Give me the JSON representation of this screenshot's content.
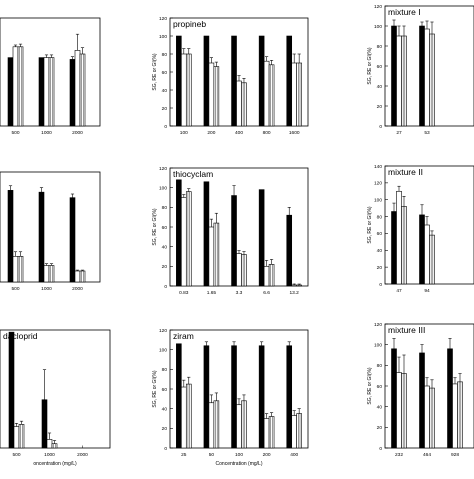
{
  "chart_data": [
    {
      "panel_id": "p1",
      "type": "bar",
      "title": "",
      "xlabel": "",
      "ylabel": "",
      "categories": [
        "500",
        "1000",
        "2000"
      ],
      "ylim": [
        0,
        120
      ],
      "show_y_ticks": false,
      "series_values": [
        [
          76,
          88,
          88
        ],
        [
          76,
          76,
          76
        ],
        [
          74,
          84,
          80
        ]
      ],
      "errors": [
        [
          0,
          2,
          3
        ],
        [
          0,
          3,
          3
        ],
        [
          3,
          18,
          7
        ]
      ]
    },
    {
      "panel_id": "p2",
      "type": "bar",
      "title": "propineb",
      "xlabel": "",
      "ylabel": "SG, RE or GI(%)",
      "categories": [
        "100",
        "200",
        "400",
        "800",
        "1600"
      ],
      "ylim": [
        0,
        120
      ],
      "yticks": [
        0,
        20,
        40,
        60,
        80,
        100,
        120
      ],
      "series_values": [
        [
          100,
          80,
          80
        ],
        [
          100,
          70,
          66
        ],
        [
          100,
          50,
          48
        ],
        [
          100,
          72,
          68
        ],
        [
          100,
          70,
          70
        ]
      ],
      "errors": [
        [
          0,
          6,
          6
        ],
        [
          0,
          6,
          5
        ],
        [
          0,
          6,
          5
        ],
        [
          0,
          5,
          5
        ],
        [
          0,
          10,
          10
        ]
      ]
    },
    {
      "panel_id": "p3",
      "type": "bar",
      "title": "mixture I",
      "xlabel": "",
      "ylabel": "SG, RE or GI(%)",
      "categories": [
        "27",
        "53"
      ],
      "ylim": [
        0,
        120
      ],
      "yticks": [
        0,
        20,
        40,
        60,
        80,
        100,
        120
      ],
      "series_values": [
        [
          100,
          90,
          90
        ],
        [
          100,
          97,
          92
        ]
      ],
      "errors": [
        [
          6,
          10,
          10
        ],
        [
          4,
          8,
          12
        ]
      ]
    },
    {
      "panel_id": "p4",
      "type": "bar",
      "title": "",
      "xlabel": "",
      "ylabel": "",
      "categories": [
        "500",
        "1000",
        "2000"
      ],
      "ylim": [
        0,
        120
      ],
      "show_y_ticks": false,
      "series_values": [
        [
          100,
          28,
          28
        ],
        [
          98,
          18,
          18
        ],
        [
          92,
          12,
          12
        ]
      ],
      "errors": [
        [
          5,
          5,
          5
        ],
        [
          5,
          2,
          2
        ],
        [
          4,
          1,
          1
        ]
      ]
    },
    {
      "panel_id": "p5",
      "type": "bar",
      "title": "thiocyclam",
      "xlabel": "",
      "ylabel": "SG, RE or GI(%)",
      "categories": [
        "0.83",
        "1.65",
        "3.3",
        "6.6",
        "13.2"
      ],
      "ylim": [
        0,
        120
      ],
      "yticks": [
        0,
        20,
        40,
        60,
        80,
        100,
        120
      ],
      "series_values": [
        [
          108,
          90,
          96
        ],
        [
          106,
          60,
          64
        ],
        [
          92,
          33,
          32
        ],
        [
          98,
          20,
          22
        ],
        [
          72,
          1,
          1
        ]
      ],
      "errors": [
        [
          0,
          3,
          3
        ],
        [
          0,
          8,
          10
        ],
        [
          10,
          3,
          3
        ],
        [
          0,
          6,
          5
        ],
        [
          8,
          1,
          1
        ]
      ]
    },
    {
      "panel_id": "p6",
      "type": "bar",
      "title": "mixture II",
      "xlabel": "",
      "ylabel": "SG, RE or GI(%)",
      "categories": [
        "47",
        "94"
      ],
      "ylim": [
        0,
        140
      ],
      "yticks": [
        0,
        20,
        40,
        60,
        80,
        100,
        120,
        140
      ],
      "series_values": [
        [
          86,
          110,
          92
        ],
        [
          82,
          70,
          58
        ]
      ],
      "errors": [
        [
          10,
          6,
          12
        ],
        [
          12,
          10,
          5
        ]
      ]
    },
    {
      "panel_id": "p7",
      "type": "bar",
      "title": "dacloprid",
      "xlabel": "oncentration (mg/L)",
      "ylabel": "",
      "categories": [
        "500",
        "1000",
        "2000"
      ],
      "ylim": [
        0,
        110
      ],
      "show_y_ticks": false,
      "series_values": [
        [
          108,
          20,
          22
        ],
        [
          45,
          8,
          4
        ],
        [
          0,
          0,
          0
        ]
      ],
      "errors": [
        [
          0,
          3,
          3
        ],
        [
          28,
          6,
          3
        ],
        [
          0,
          0,
          0
        ]
      ]
    },
    {
      "panel_id": "p8",
      "type": "bar",
      "title": "ziram",
      "xlabel": "Concentration (mg/L)",
      "ylabel": "SG, RE or GI(%)",
      "categories": [
        "25",
        "50",
        "100",
        "200",
        "400"
      ],
      "ylim": [
        0,
        120
      ],
      "yticks": [
        0,
        20,
        40,
        60,
        80,
        100,
        120
      ],
      "series_values": [
        [
          106,
          62,
          65
        ],
        [
          104,
          46,
          48
        ],
        [
          104,
          44,
          48
        ],
        [
          104,
          30,
          32
        ],
        [
          104,
          33,
          35
        ]
      ],
      "errors": [
        [
          0,
          7,
          7
        ],
        [
          4,
          8,
          8
        ],
        [
          4,
          6,
          6
        ],
        [
          4,
          5,
          4
        ],
        [
          4,
          5,
          5
        ]
      ]
    },
    {
      "panel_id": "p9",
      "type": "bar",
      "title": "mixture III",
      "xlabel": "",
      "ylabel": "SG, RE or GI(%)",
      "categories": [
        "232",
        "464",
        "928"
      ],
      "ylim": [
        0,
        120
      ],
      "yticks": [
        0,
        20,
        40,
        60,
        80,
        100,
        120
      ],
      "series_values": [
        [
          96,
          73,
          72
        ],
        [
          92,
          60,
          58
        ],
        [
          96,
          62,
          64
        ]
      ],
      "errors": [
        [
          10,
          15,
          18
        ],
        [
          8,
          8,
          8
        ],
        [
          10,
          6,
          8
        ]
      ]
    }
  ]
}
